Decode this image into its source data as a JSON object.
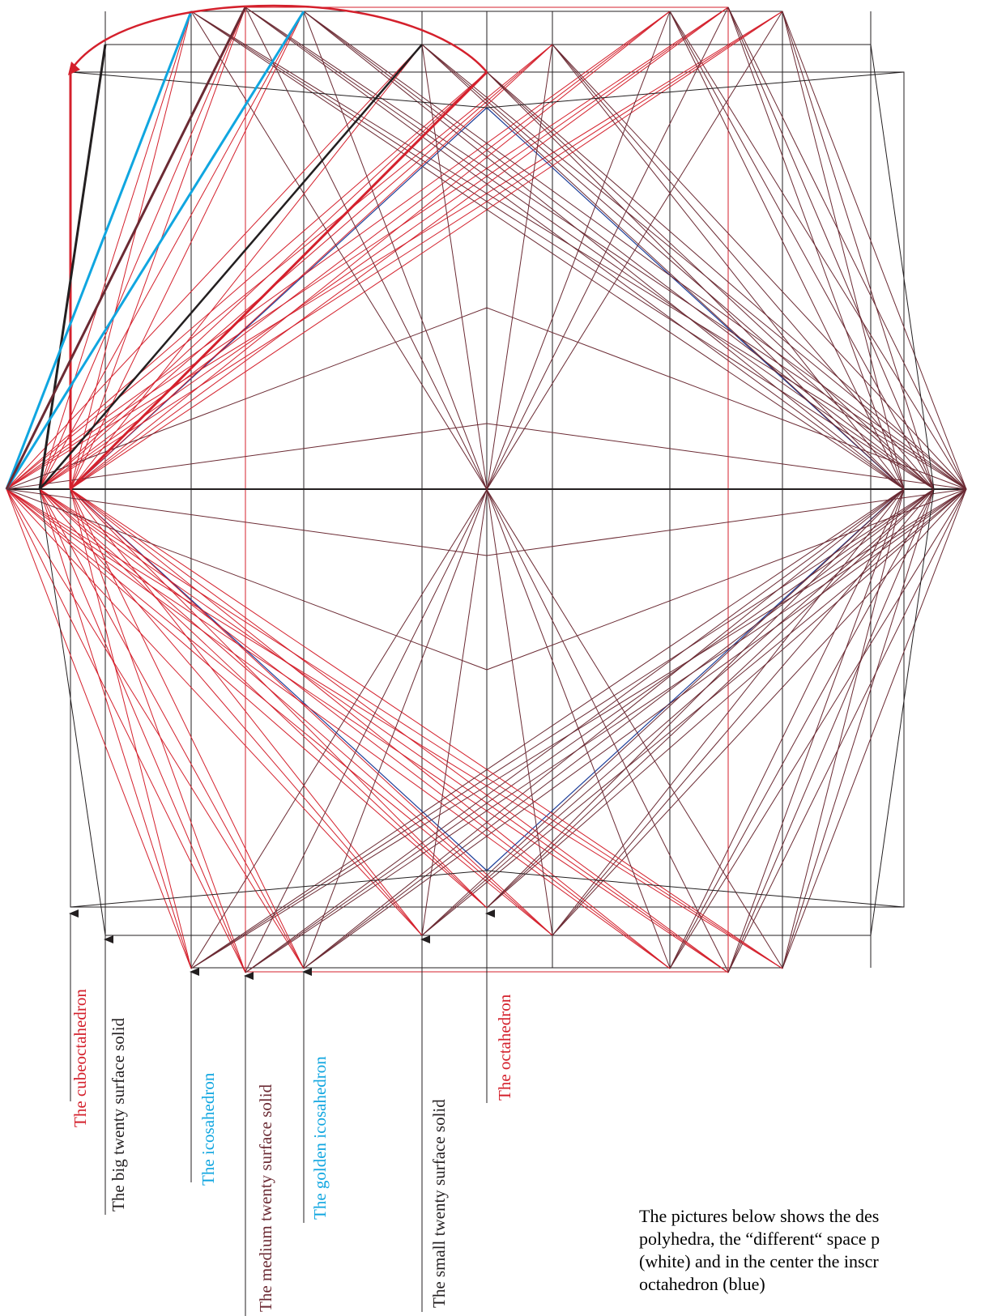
{
  "colors": {
    "black": "#231f20",
    "red": "#d4202c",
    "darkred": "#6b2a33",
    "blue": "#1d3f9a",
    "cyan": "#10a6e0"
  },
  "labels": [
    {
      "id": "cubeoctahedron",
      "text": "The cubeoctahedron",
      "color": "red"
    },
    {
      "id": "big-twenty-surface-solid",
      "text": "The big twenty surface solid",
      "color": "black"
    },
    {
      "id": "icosahedron",
      "text": "The icosahedron",
      "color": "cyan"
    },
    {
      "id": "medium-twenty-surface-solid",
      "text": "The medium twenty surface solid",
      "color": "darkred"
    },
    {
      "id": "golden-icosahedron",
      "text": "The golden icosahedron",
      "color": "cyan"
    },
    {
      "id": "small-twenty-surface-solid",
      "text": "The small twenty surface solid",
      "color": "black"
    },
    {
      "id": "octahedron",
      "text": "The octahedron",
      "color": "red"
    }
  ],
  "caption": {
    "lines": [
      "The pictures below shows the des",
      "polyhedra, the “different“ space p",
      "(white) and in the center the inscr",
      "octahedron (blue)"
    ]
  }
}
